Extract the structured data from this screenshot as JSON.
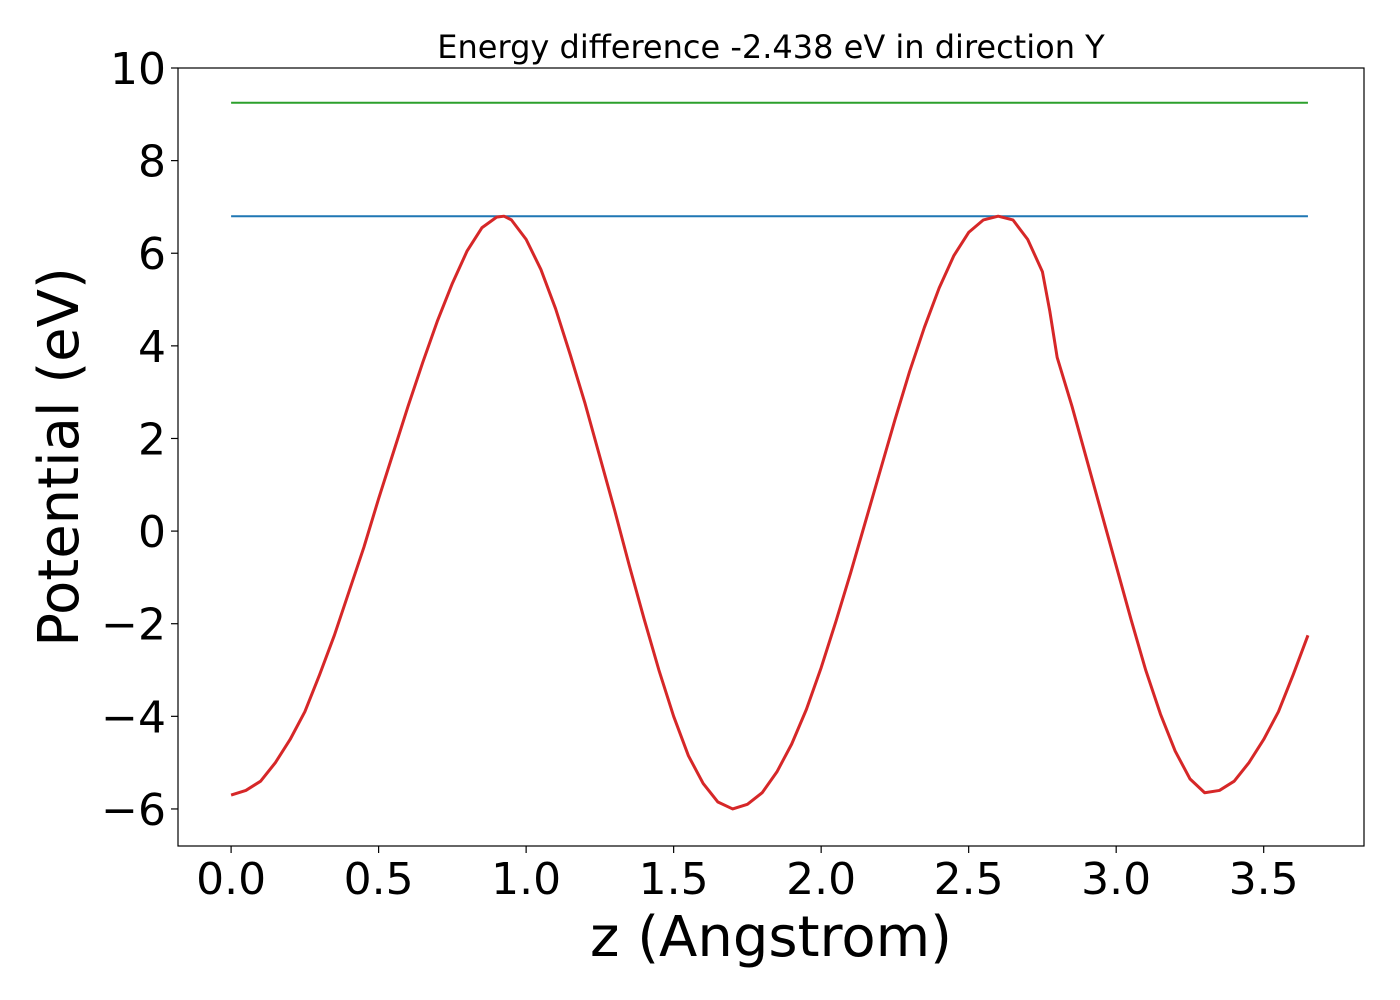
{
  "chart_data": {
    "type": "line",
    "title": "Energy difference -2.438 eV in direction Y",
    "xlabel": "z (Angstrom)",
    "ylabel": "Potential (eV)",
    "xlim": [
      -0.18,
      3.84
    ],
    "ylim": [
      -6.8,
      10
    ],
    "xticks": [
      0.0,
      0.5,
      1.0,
      1.5,
      2.0,
      2.5,
      3.0,
      3.5
    ],
    "xtick_labels": [
      "0.0",
      "0.5",
      "1.0",
      "1.5",
      "2.0",
      "2.5",
      "3.0",
      "3.5"
    ],
    "yticks": [
      -6,
      -4,
      -2,
      0,
      2,
      4,
      6,
      8,
      10
    ],
    "ytick_labels": [
      "−6",
      "−4",
      "−2",
      "0",
      "2",
      "4",
      "6",
      "8",
      "10"
    ],
    "grid": false,
    "series": [
      {
        "color": "#1f77b4",
        "x": [
          0.0,
          3.65
        ],
        "y": [
          6.8,
          6.8
        ]
      },
      {
        "color": "#2ca02c",
        "x": [
          0.0,
          3.65
        ],
        "y": [
          9.25,
          9.25
        ]
      },
      {
        "color": "#d62728",
        "x": [
          0.0,
          0.05,
          0.1,
          0.15,
          0.2,
          0.25,
          0.3,
          0.35,
          0.4,
          0.45,
          0.5,
          0.55,
          0.6,
          0.65,
          0.7,
          0.75,
          0.8,
          0.85,
          0.9,
          0.925,
          0.95,
          1.0,
          1.05,
          1.1,
          1.15,
          1.2,
          1.25,
          1.3,
          1.35,
          1.4,
          1.45,
          1.5,
          1.55,
          1.6,
          1.65,
          1.7,
          1.75,
          1.8,
          1.85,
          1.9,
          1.95,
          2.0,
          2.05,
          2.1,
          2.15,
          2.2,
          2.25,
          2.3,
          2.35,
          2.4,
          2.45,
          2.5,
          2.55,
          2.6,
          2.65,
          2.7,
          2.75,
          2.775,
          2.8,
          2.85,
          2.9,
          2.95,
          3.0,
          3.05,
          3.1,
          3.15,
          3.2,
          3.25,
          3.3,
          3.35,
          3.4,
          3.45,
          3.5,
          3.55,
          3.6,
          3.65
        ],
        "y": [
          -5.7,
          -5.6,
          -5.4,
          -5.0,
          -4.5,
          -3.9,
          -3.1,
          -2.25,
          -1.3,
          -0.35,
          0.7,
          1.7,
          2.7,
          3.65,
          4.55,
          5.35,
          6.05,
          6.55,
          6.78,
          6.8,
          6.72,
          6.3,
          5.65,
          4.8,
          3.8,
          2.75,
          1.6,
          0.45,
          -0.75,
          -1.9,
          -3.0,
          -4.0,
          -4.85,
          -5.45,
          -5.85,
          -6.0,
          -5.9,
          -5.65,
          -5.2,
          -4.6,
          -3.85,
          -2.95,
          -1.95,
          -0.9,
          0.2,
          1.3,
          2.4,
          3.45,
          4.4,
          5.25,
          5.95,
          6.45,
          6.72,
          6.8,
          6.72,
          6.3,
          5.6,
          4.75,
          3.75,
          2.7,
          1.55,
          0.4,
          -0.75,
          -1.9,
          -3.0,
          -3.95,
          -4.75,
          -5.35,
          -5.65,
          -5.6,
          -5.4,
          -5.0,
          -4.5,
          -3.9,
          -3.1,
          -2.25
        ]
      }
    ]
  }
}
